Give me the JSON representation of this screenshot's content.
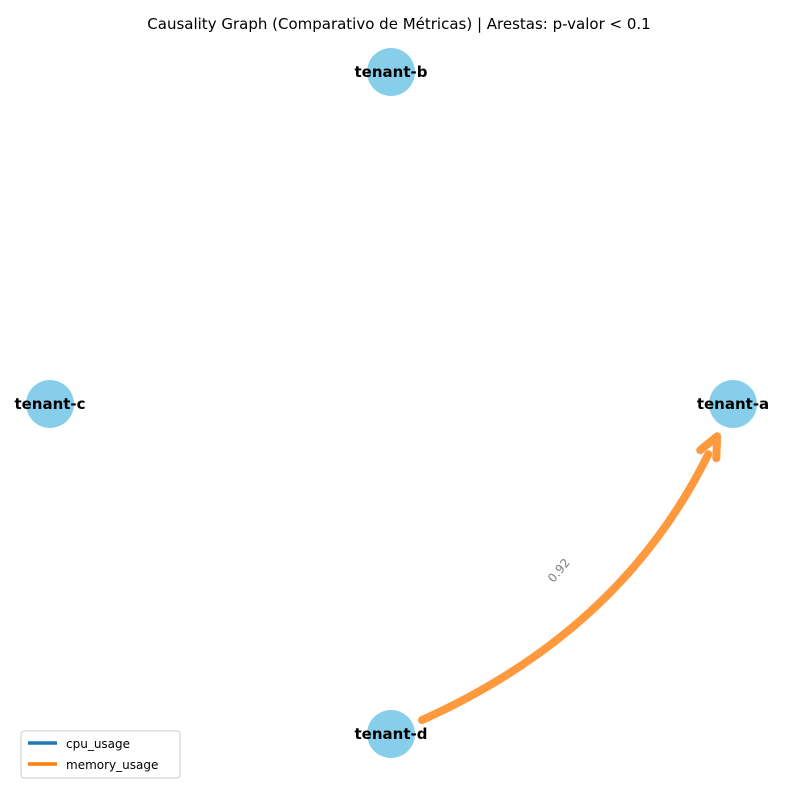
{
  "title": "Causality Graph (Comparativo de Métricas) | Arestas: p-valor < 0.1",
  "node_color": "#87CEEB",
  "nodes": [
    {
      "id": "tenant-a",
      "label": "tenant-a"
    },
    {
      "id": "tenant-b",
      "label": "tenant-b"
    },
    {
      "id": "tenant-c",
      "label": "tenant-c"
    },
    {
      "id": "tenant-d",
      "label": "tenant-d"
    }
  ],
  "edges": [
    {
      "source": "tenant-d",
      "target": "tenant-a",
      "metric": "memory_usage",
      "label": "0.92",
      "color": "#ff7f0e"
    }
  ],
  "edge_label_color": "#808080",
  "legend": [
    {
      "label": "cpu_usage",
      "color": "#1f77b4"
    },
    {
      "label": "memory_usage",
      "color": "#ff7f0e"
    }
  ]
}
